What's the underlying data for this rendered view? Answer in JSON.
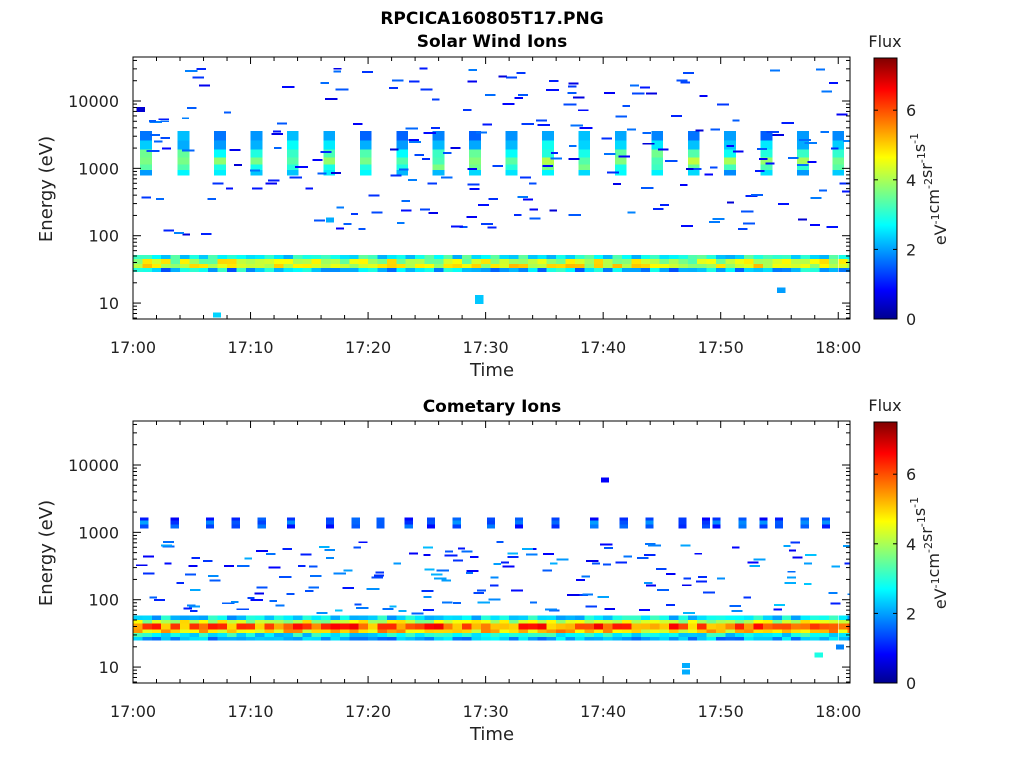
{
  "figure_title": "RPCICA160805T17.PNG",
  "colorbar": {
    "title": "Flux",
    "label_base": "eV",
    "label_units": [
      {
        "base": "eV",
        "exp": "-1"
      },
      {
        "base": "cm",
        "exp": "-2"
      },
      {
        "base": "sr",
        "exp": "-1"
      },
      {
        "base": "s",
        "exp": "-1"
      }
    ],
    "ticks": [
      "0",
      "2",
      "4",
      "6"
    ],
    "range": [
      0,
      7.5
    ],
    "colormap": "jet",
    "colors": [
      "#00008f",
      "#0000ff",
      "#00ffff",
      "#ffff00",
      "#ff0000",
      "#800000"
    ]
  },
  "chart_data": [
    {
      "type": "heatmap",
      "title": "Solar Wind Ions",
      "xlabel": "Time",
      "ylabel": "Energy (eV)",
      "x_ticks": [
        "17:00",
        "17:10",
        "17:20",
        "17:30",
        "17:40",
        "17:50",
        "18:00"
      ],
      "x_range_minutes": [
        0,
        61
      ],
      "y_scale": "log",
      "y_ticks": [
        "10",
        "100",
        "1000",
        "10000"
      ],
      "y_range": [
        5.8,
        45000
      ],
      "z_range": [
        0,
        7.5
      ],
      "layers": [
        {
          "e_lo": 38,
          "e_hi": 45,
          "t_start": 0,
          "t_end": 61,
          "step_min": 0.8,
          "flux": 4.2,
          "flux_var": 0.8
        },
        {
          "e_lo": 33,
          "e_hi": 38,
          "t_start": 0,
          "t_end": 61,
          "step_min": 0.8,
          "flux": 4.5,
          "flux_var": 0.7
        },
        {
          "e_lo": 45,
          "e_hi": 52,
          "t_start": 0,
          "t_end": 61,
          "step_min": 0.8,
          "flux": 2.9,
          "flux_var": 0.7
        },
        {
          "e_lo": 29,
          "e_hi": 33,
          "t_start": 0,
          "t_end": 61,
          "step_min": 0.8,
          "flux": 2.4,
          "flux_var": 0.9
        }
      ],
      "bursts": {
        "times_min": [
          0.6,
          3.8,
          6.9,
          10.0,
          13.1,
          16.2,
          19.3,
          22.4,
          25.5,
          28.6,
          31.7,
          34.8,
          37.9,
          41.0,
          44.1,
          47.2,
          50.3,
          53.4,
          56.5,
          59.5
        ],
        "width_min": 1.0,
        "profile": [
          {
            "e_lo": 2600,
            "e_hi": 3600,
            "flux": 2.0
          },
          {
            "e_lo": 1900,
            "e_hi": 2600,
            "flux": 2.5
          },
          {
            "e_lo": 1450,
            "e_hi": 1900,
            "flux": 3.2
          },
          {
            "e_lo": 1150,
            "e_hi": 1450,
            "flux": 3.8
          },
          {
            "e_lo": 950,
            "e_hi": 1150,
            "flux": 3.3
          },
          {
            "e_lo": 780,
            "e_hi": 950,
            "flux": 2.4
          }
        ]
      },
      "sparse": [
        {
          "e_lo": 100,
          "e_hi": 30000,
          "t_start": 0,
          "t_end": 61,
          "count": 210,
          "flux_lo": 0.6,
          "flux_hi": 1.9,
          "seed": 11
        }
      ],
      "isolated": [
        {
          "t": 6.8,
          "e": 6.6,
          "flux": 2.5
        },
        {
          "t": 29.1,
          "e": 10.5,
          "flux": 2.4
        },
        {
          "t": 29.1,
          "e": 12.0,
          "flux": 2.4
        },
        {
          "t": 54.8,
          "e": 15.5,
          "flux": 2.1
        },
        {
          "t": 16.4,
          "e": 170,
          "flux": 2.2
        },
        {
          "t": 0.3,
          "e": 7500,
          "flux": 0.6
        }
      ]
    },
    {
      "type": "heatmap",
      "title": "Cometary Ions",
      "xlabel": "Time",
      "ylabel": "Energy (eV)",
      "x_ticks": [
        "17:00",
        "17:10",
        "17:20",
        "17:30",
        "17:40",
        "17:50",
        "18:00"
      ],
      "x_range_minutes": [
        0,
        61
      ],
      "y_scale": "log",
      "y_ticks": [
        "10",
        "100",
        "1000",
        "10000"
      ],
      "y_range": [
        5.8,
        45000
      ],
      "z_range": [
        0,
        7.5
      ],
      "layers": [
        {
          "e_lo": 36,
          "e_hi": 44,
          "t_start": 0,
          "t_end": 61,
          "step_min": 0.8,
          "flux": 5.8,
          "flux_var": 0.9
        },
        {
          "e_lo": 32,
          "e_hi": 36,
          "t_start": 0,
          "t_end": 61,
          "step_min": 0.8,
          "flux": 5.0,
          "flux_var": 0.8
        },
        {
          "e_lo": 44,
          "e_hi": 50,
          "t_start": 0,
          "t_end": 61,
          "step_min": 0.8,
          "flux": 4.3,
          "flux_var": 0.7
        },
        {
          "e_lo": 50,
          "e_hi": 58,
          "t_start": 0,
          "t_end": 61,
          "step_min": 0.8,
          "flux": 2.6,
          "flux_var": 0.7
        },
        {
          "e_lo": 28,
          "e_hi": 32,
          "t_start": 0,
          "t_end": 61,
          "step_min": 0.8,
          "flux": 2.8,
          "flux_var": 0.6
        },
        {
          "e_lo": 25,
          "e_hi": 28,
          "t_start": 0,
          "t_end": 61,
          "step_min": 0.8,
          "flux": 2.2,
          "flux_var": 0.6
        }
      ],
      "bursts": {
        "times_min": [
          0.6,
          3.2,
          6.2,
          8.4,
          10.6,
          13.1,
          16.4,
          18.6,
          20.7,
          23.1,
          25.0,
          27.2,
          30.1,
          32.5,
          35.6,
          38.9,
          41.4,
          43.6,
          46.4,
          48.4,
          49.3,
          51.5,
          53.3,
          54.6,
          56.8,
          58.6
        ],
        "width_min": 0.7,
        "profile": [
          {
            "e_lo": 1500,
            "e_hi": 1650,
            "flux": 1.3
          },
          {
            "e_lo": 1300,
            "e_hi": 1500,
            "flux": 1.7
          },
          {
            "e_lo": 1150,
            "e_hi": 1300,
            "flux": 1.4
          }
        ]
      },
      "sparse": [
        {
          "e_lo": 60,
          "e_hi": 700,
          "t_start": 0,
          "t_end": 61,
          "count": 170,
          "flux_lo": 0.8,
          "flux_hi": 2.4,
          "seed": 23
        }
      ],
      "isolated": [
        {
          "t": 39.8,
          "e": 6000,
          "flux": 0.9
        },
        {
          "t": 46.7,
          "e": 8.5,
          "flux": 2.2
        },
        {
          "t": 46.7,
          "e": 10.5,
          "flux": 2.2
        },
        {
          "t": 58.0,
          "e": 15.0,
          "flux": 3.0
        },
        {
          "t": 59.8,
          "e": 20.0,
          "flux": 1.9
        }
      ]
    }
  ]
}
